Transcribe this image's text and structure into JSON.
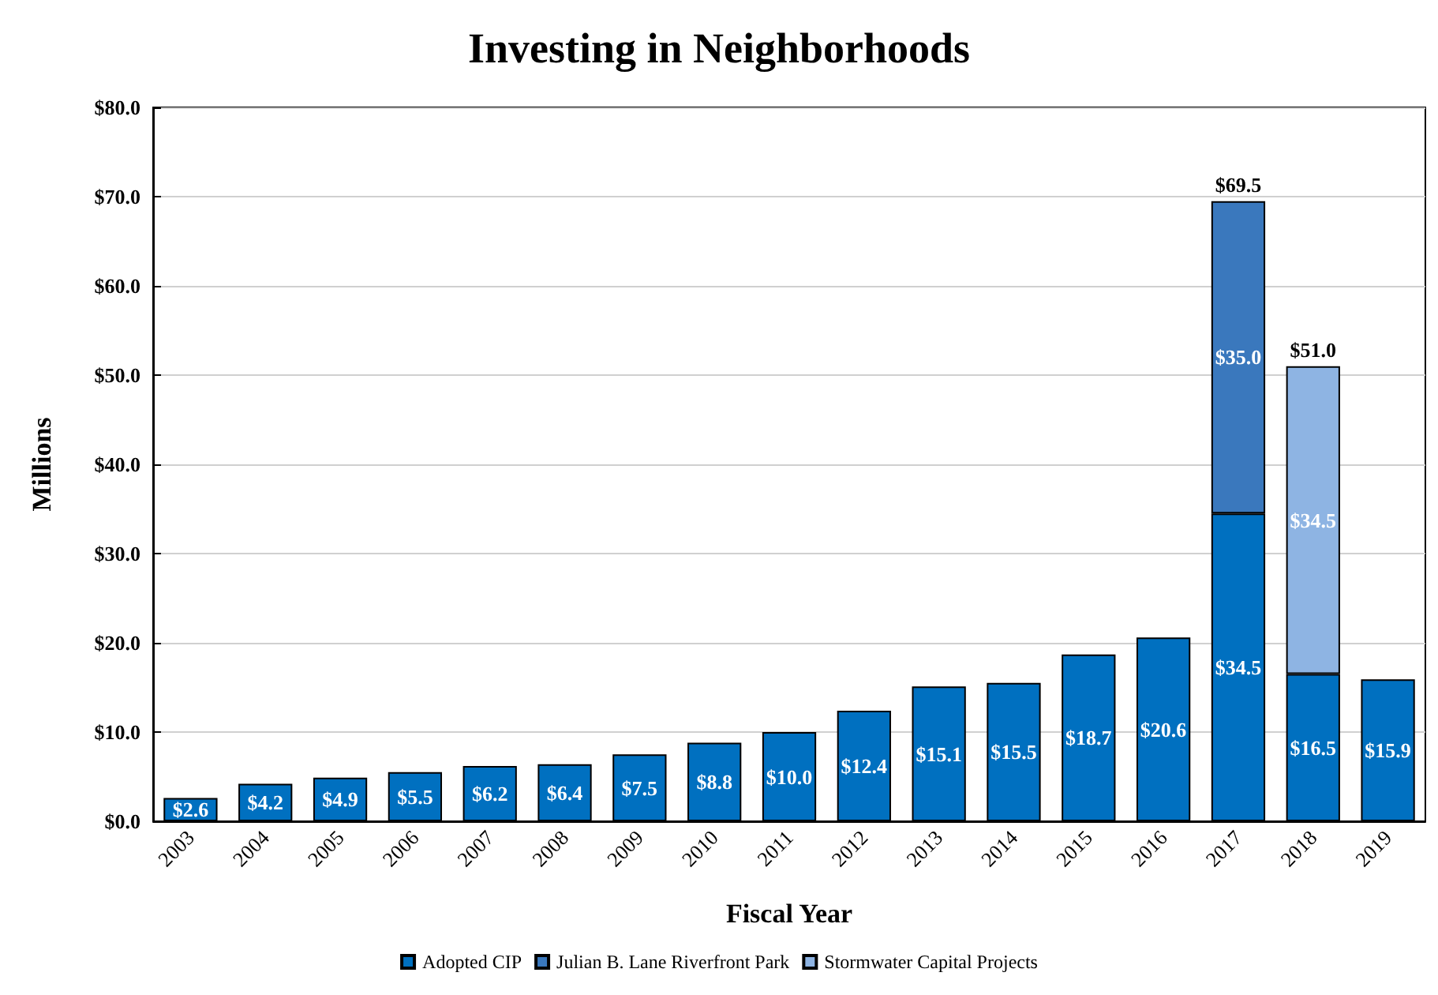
{
  "chart_data": {
    "type": "bar",
    "title": "Investing in Neighborhoods",
    "xlabel": "Fiscal Year",
    "ylabel": "Millions",
    "categories": [
      "2003",
      "2004",
      "2005",
      "2006",
      "2007",
      "2008",
      "2009",
      "2010",
      "2011",
      "2012",
      "2013",
      "2014",
      "2015",
      "2016",
      "2017",
      "2018",
      "2019"
    ],
    "stacked": true,
    "series": [
      {
        "name": "Adopted CIP",
        "color": "#0070c0",
        "values": [
          2.6,
          4.2,
          4.9,
          5.5,
          6.2,
          6.4,
          7.5,
          8.8,
          10.0,
          12.4,
          15.1,
          15.5,
          18.7,
          20.6,
          34.5,
          16.5,
          15.9
        ],
        "value_labels": [
          "$2.6",
          "$4.2",
          "$4.9",
          "$5.5",
          "$6.2",
          "$6.4",
          "$7.5",
          "$8.8",
          "$10.0",
          "$12.4",
          "$15.1",
          "$15.5",
          "$18.7",
          "$20.6",
          "$34.5",
          "$16.5",
          "$15.9"
        ]
      },
      {
        "name": "Julian B. Lane Riverfront Park",
        "color": "#3a78bd",
        "values": [
          null,
          null,
          null,
          null,
          null,
          null,
          null,
          null,
          null,
          null,
          null,
          null,
          null,
          null,
          35.0,
          null,
          null
        ],
        "value_labels": [
          null,
          null,
          null,
          null,
          null,
          null,
          null,
          null,
          null,
          null,
          null,
          null,
          null,
          null,
          "$35.0",
          null,
          null
        ]
      },
      {
        "name": "Stormwater Capital Projects",
        "color": "#8eb4e3",
        "values": [
          null,
          null,
          null,
          null,
          null,
          null,
          null,
          null,
          null,
          null,
          null,
          null,
          null,
          null,
          null,
          34.5,
          null
        ],
        "value_labels": [
          null,
          null,
          null,
          null,
          null,
          null,
          null,
          null,
          null,
          null,
          null,
          null,
          null,
          null,
          null,
          "$34.5",
          null
        ]
      }
    ],
    "totals": [
      null,
      null,
      null,
      null,
      null,
      null,
      null,
      null,
      null,
      null,
      null,
      null,
      null,
      null,
      "$69.5",
      "$51.0",
      null
    ],
    "ylim": [
      0,
      80
    ],
    "yticks": [
      {
        "value": 0,
        "label": "$0.0"
      },
      {
        "value": 10,
        "label": "$10.0"
      },
      {
        "value": 20,
        "label": "$20.0"
      },
      {
        "value": 30,
        "label": "$30.0"
      },
      {
        "value": 40,
        "label": "$40.0"
      },
      {
        "value": 50,
        "label": "$50.0"
      },
      {
        "value": 60,
        "label": "$60.0"
      },
      {
        "value": 70,
        "label": "$70.0"
      },
      {
        "value": 80,
        "label": "$80.0"
      }
    ],
    "grid": "y",
    "legend": "bottom"
  }
}
